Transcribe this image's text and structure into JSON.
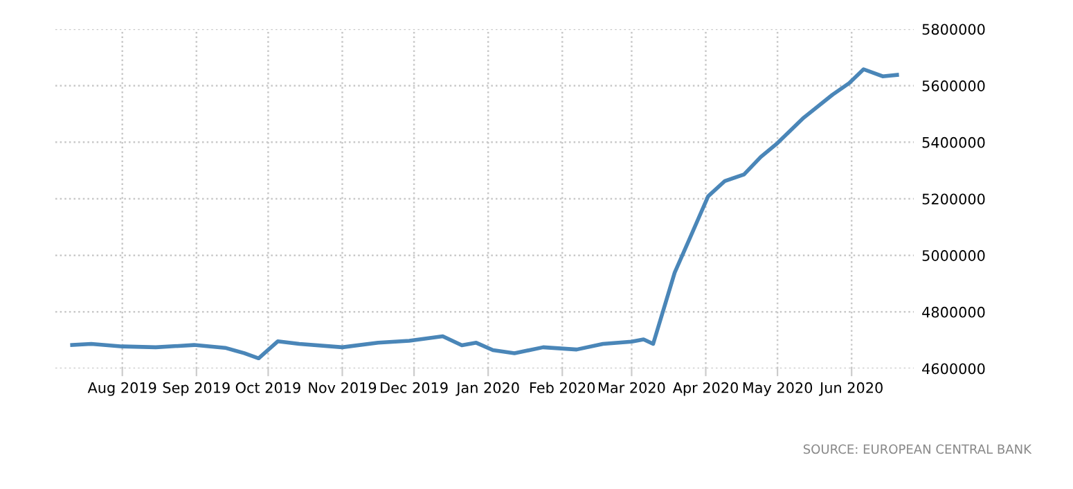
{
  "chart_data": {
    "type": "line",
    "x": [
      "2019-07-11",
      "2019-07-19",
      "2019-08-01",
      "2019-08-15",
      "2019-08-31",
      "2019-09-13",
      "2019-09-21",
      "2019-09-27",
      "2019-10-05",
      "2019-10-14",
      "2019-11-01",
      "2019-11-16",
      "2019-11-29",
      "2019-12-13",
      "2019-12-21",
      "2019-12-27",
      "2020-01-03",
      "2020-01-12",
      "2020-01-24",
      "2020-02-07",
      "2020-02-18",
      "2020-03-01",
      "2020-03-06",
      "2020-03-10",
      "2020-03-19",
      "2020-03-25",
      "2020-04-02",
      "2020-04-09",
      "2020-04-17",
      "2020-04-24",
      "2020-05-01",
      "2020-05-12",
      "2020-05-24",
      "2020-05-31",
      "2020-06-06",
      "2020-06-14",
      "2020-06-20"
    ],
    "series": [
      {
        "color": "#4a86b8",
        "values": [
          4683000,
          4687000,
          4678000,
          4675000,
          4683000,
          4673000,
          4654000,
          4636000,
          4696000,
          4687000,
          4675000,
          4691000,
          4698000,
          4714000,
          4682000,
          4691000,
          4665000,
          4654000,
          4675000,
          4667000,
          4687000,
          4695000,
          4703000,
          4687000,
          4939000,
          5054000,
          5209000,
          5263000,
          5286000,
          5348000,
          5397000,
          5487000,
          5568000,
          5609000,
          5658000,
          5633000,
          5638000
        ]
      }
    ],
    "xlim": [
      "2019-07-04",
      "2020-06-27"
    ],
    "xticks": [
      {
        "value": "2019-08-01",
        "label": "Aug 2019"
      },
      {
        "value": "2019-09-01",
        "label": "Sep 2019"
      },
      {
        "value": "2019-10-01",
        "label": "Oct 2019"
      },
      {
        "value": "2019-11-01",
        "label": "Nov 2019"
      },
      {
        "value": "2019-12-01",
        "label": "Dec 2019"
      },
      {
        "value": "2020-01-01",
        "label": "Jan 2020"
      },
      {
        "value": "2020-02-01",
        "label": "Feb 2020"
      },
      {
        "value": "2020-03-01",
        "label": "Mar 2020"
      },
      {
        "value": "2020-04-01",
        "label": "Apr 2020"
      },
      {
        "value": "2020-05-01",
        "label": "May 2020"
      },
      {
        "value": "2020-06-01",
        "label": "Jun 2020"
      }
    ],
    "ylim": [
      4600000,
      5800000
    ],
    "yticks": [
      4600000,
      4800000,
      5000000,
      5200000,
      5400000,
      5600000,
      5800000
    ],
    "grid": true,
    "marker": "none",
    "line_style": "solid",
    "legend": false,
    "annotations": [
      "SOURCE: EUROPEAN CENTRAL BANK"
    ]
  }
}
